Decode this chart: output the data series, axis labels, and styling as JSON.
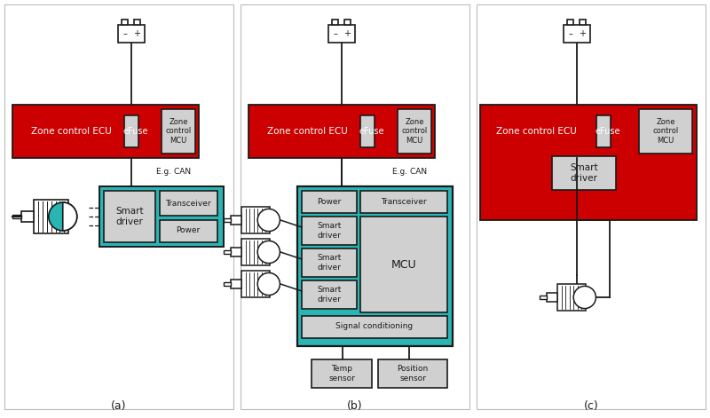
{
  "bg_color": "#ffffff",
  "red_color": "#cc0000",
  "teal_color": "#2ab5b5",
  "light_gray": "#d0d0d0",
  "white": "#ffffff",
  "dark": "#1a1a1a",
  "label_a": "(a)",
  "label_b": "(b)",
  "label_c": "(c)"
}
